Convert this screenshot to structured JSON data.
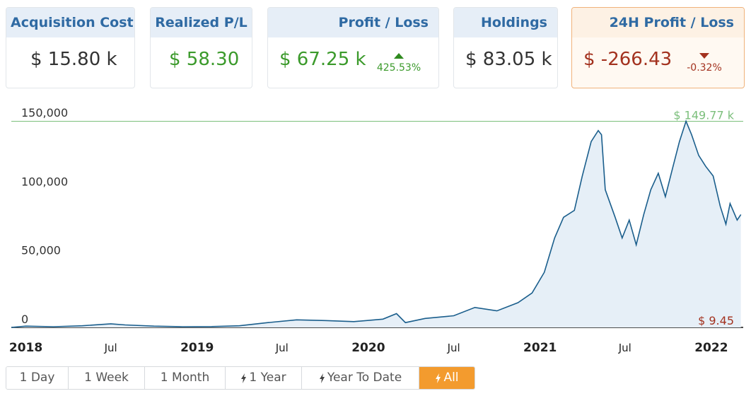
{
  "cards": {
    "acquisition": {
      "label": "Acquisition Cost",
      "value": "$ 15.80 k"
    },
    "realized": {
      "label": "Realized P/L",
      "value": "$ 58.30"
    },
    "profit": {
      "label": "Profit / Loss",
      "value": "$ 67.25 k",
      "change": "425.53%"
    },
    "holdings": {
      "label": "Holdings",
      "value": "$ 83.05 k"
    },
    "day": {
      "label": "24H Profit / Loss",
      "value": "$ -266.43",
      "change": "-0.32%"
    }
  },
  "ranges": [
    "1 Day",
    "1 Week",
    "1 Month",
    "1 Year",
    "Year To Date",
    "All"
  ],
  "active_range": "All",
  "colors": {
    "line": "#1a5e8c",
    "fill": "#e6eff7",
    "max": "#7cbf7c",
    "min": "#a3321f",
    "accent": "#f39b2e"
  },
  "chart_data": {
    "type": "area",
    "x_start": "2017-12",
    "x_end": "2022-03",
    "ylim": [
      0,
      150000
    ],
    "yticks": [
      0,
      50000,
      100000,
      150000
    ],
    "ytick_labels": [
      "0",
      "50,000",
      "100,000",
      "150,000"
    ],
    "xticks": [
      {
        "date": "2018-01",
        "label": "2018",
        "bold": true
      },
      {
        "date": "2018-07",
        "label": "Jul",
        "bold": false
      },
      {
        "date": "2019-01",
        "label": "2019",
        "bold": true
      },
      {
        "date": "2019-07",
        "label": "Jul",
        "bold": false
      },
      {
        "date": "2020-01",
        "label": "2020",
        "bold": true
      },
      {
        "date": "2020-07",
        "label": "Jul",
        "bold": false
      },
      {
        "date": "2021-01",
        "label": "2021",
        "bold": true
      },
      {
        "date": "2021-07",
        "label": "Jul",
        "bold": false
      },
      {
        "date": "2022-01",
        "label": "2022",
        "bold": true
      }
    ],
    "max_label": "$ 149.77 k",
    "min_label": "$ 9.45",
    "max_value": 149770,
    "min_value": 9.45,
    "series": [
      {
        "points": [
          [
            "2017-12-01",
            9.45
          ],
          [
            "2018-01-01",
            900
          ],
          [
            "2018-03-01",
            500
          ],
          [
            "2018-05-01",
            1200
          ],
          [
            "2018-07-01",
            2600
          ],
          [
            "2018-08-01",
            1800
          ],
          [
            "2018-10-01",
            900
          ],
          [
            "2018-12-01",
            500
          ],
          [
            "2019-02-01",
            600
          ],
          [
            "2019-04-01",
            1200
          ],
          [
            "2019-06-01",
            3500
          ],
          [
            "2019-08-01",
            5500
          ],
          [
            "2019-10-01",
            5000
          ],
          [
            "2019-12-01",
            4200
          ],
          [
            "2020-02-01",
            6000
          ],
          [
            "2020-03-01",
            10000
          ],
          [
            "2020-03-20",
            3500
          ],
          [
            "2020-05-01",
            6500
          ],
          [
            "2020-07-01",
            8500
          ],
          [
            "2020-08-15",
            14500
          ],
          [
            "2020-10-01",
            12000
          ],
          [
            "2020-11-15",
            18000
          ],
          [
            "2020-12-15",
            25000
          ],
          [
            "2021-01-10",
            40000
          ],
          [
            "2021-02-01",
            65000
          ],
          [
            "2021-02-20",
            80000
          ],
          [
            "2021-03-15",
            85000
          ],
          [
            "2021-04-01",
            110000
          ],
          [
            "2021-04-20",
            135000
          ],
          [
            "2021-05-05",
            143000
          ],
          [
            "2021-05-12",
            140000
          ],
          [
            "2021-05-20",
            100000
          ],
          [
            "2021-06-10",
            80000
          ],
          [
            "2021-06-25",
            65000
          ],
          [
            "2021-07-10",
            78000
          ],
          [
            "2021-07-25",
            60000
          ],
          [
            "2021-08-10",
            82000
          ],
          [
            "2021-08-25",
            100000
          ],
          [
            "2021-09-10",
            112000
          ],
          [
            "2021-09-25",
            95000
          ],
          [
            "2021-10-10",
            115000
          ],
          [
            "2021-10-25",
            135000
          ],
          [
            "2021-11-08",
            149770
          ],
          [
            "2021-11-20",
            140000
          ],
          [
            "2021-12-05",
            125000
          ],
          [
            "2021-12-20",
            117000
          ],
          [
            "2022-01-05",
            110000
          ],
          [
            "2022-01-20",
            88000
          ],
          [
            "2022-02-01",
            75000
          ],
          [
            "2022-02-10",
            90000
          ],
          [
            "2022-02-25",
            78000
          ],
          [
            "2022-03-05",
            82000
          ]
        ]
      }
    ]
  }
}
